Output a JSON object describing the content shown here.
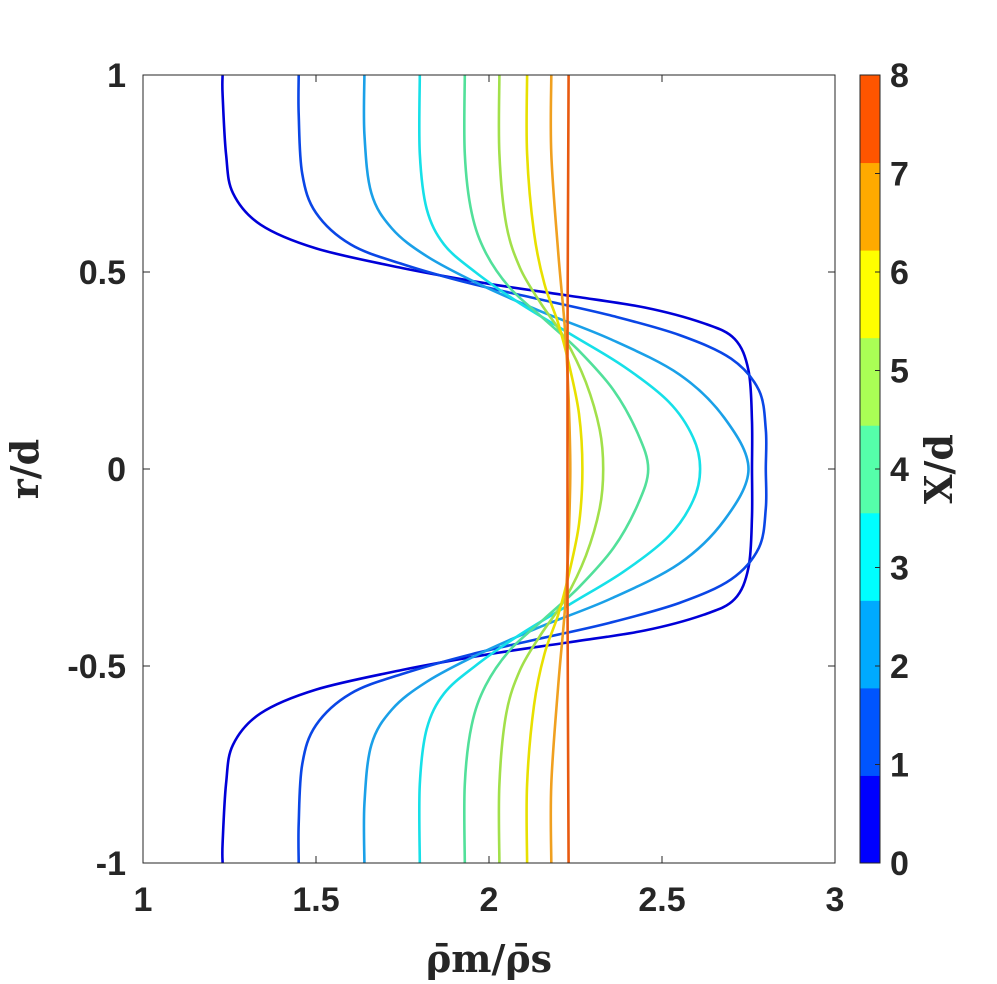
{
  "chart_data": {
    "type": "line",
    "title": "",
    "xlabel": "ρ̄m/ρ̄s",
    "ylabel": "r/d",
    "xlim": [
      1,
      3
    ],
    "ylim": [
      -1,
      1
    ],
    "grid": false,
    "x_ticks": [
      "1",
      "1.5",
      "2",
      "2.5",
      "3"
    ],
    "y_ticks": [
      "-1",
      "-0.5",
      "0",
      "0.5",
      "1"
    ],
    "colorbar": {
      "label": "X/d",
      "range": [
        0,
        8
      ],
      "ticks": [
        "0",
        "1",
        "2",
        "3",
        "4",
        "5",
        "6",
        "7",
        "8"
      ],
      "colors": [
        "#0000ff",
        "#0055ff",
        "#00aaff",
        "#00ffff",
        "#55ffaa",
        "#aaff55",
        "#ffff00",
        "#ffaa00",
        "#ff5500"
      ]
    },
    "series": [
      {
        "color": "#0000d8",
        "x": [
          1.23,
          1.23,
          1.24,
          1.26,
          1.34,
          1.5,
          1.75,
          2.0,
          2.23,
          2.45,
          2.62,
          2.71,
          2.75,
          2.76,
          2.76
        ],
        "y": [
          1.0,
          0.95,
          0.8,
          0.7,
          0.62,
          0.56,
          0.51,
          0.47,
          0.44,
          0.41,
          0.37,
          0.33,
          0.25,
          0.12,
          0.0
        ]
      },
      {
        "color": "#0a46e6",
        "x": [
          1.45,
          1.45,
          1.46,
          1.5,
          1.6,
          1.75,
          1.95,
          2.15,
          2.35,
          2.55,
          2.7,
          2.78,
          2.8,
          2.8
        ],
        "y": [
          1.0,
          0.9,
          0.75,
          0.65,
          0.57,
          0.52,
          0.47,
          0.43,
          0.39,
          0.34,
          0.28,
          0.2,
          0.1,
          0.0
        ]
      },
      {
        "color": "#1aa0e8",
        "x": [
          1.64,
          1.64,
          1.66,
          1.72,
          1.82,
          1.97,
          2.15,
          2.35,
          2.55,
          2.68,
          2.75
        ],
        "y": [
          1.0,
          0.85,
          0.7,
          0.61,
          0.54,
          0.47,
          0.4,
          0.33,
          0.24,
          0.13,
          0.0
        ]
      },
      {
        "color": "#16e0e8",
        "x": [
          1.8,
          1.8,
          1.82,
          1.87,
          1.96,
          2.09,
          2.24,
          2.39,
          2.52,
          2.59,
          2.61
        ],
        "y": [
          1.0,
          0.8,
          0.66,
          0.57,
          0.5,
          0.42,
          0.34,
          0.26,
          0.17,
          0.08,
          0.0
        ]
      },
      {
        "color": "#52e09a",
        "x": [
          1.93,
          1.93,
          1.95,
          1.99,
          2.06,
          2.16,
          2.26,
          2.36,
          2.43,
          2.46
        ],
        "y": [
          1.0,
          0.8,
          0.65,
          0.55,
          0.46,
          0.38,
          0.3,
          0.2,
          0.09,
          0.0
        ]
      },
      {
        "color": "#a2e04a",
        "x": [
          2.03,
          2.03,
          2.05,
          2.09,
          2.15,
          2.22,
          2.28,
          2.32,
          2.33
        ],
        "y": [
          1.0,
          0.8,
          0.62,
          0.51,
          0.42,
          0.33,
          0.22,
          0.1,
          0.0
        ]
      },
      {
        "color": "#e8e000",
        "x": [
          2.11,
          2.11,
          2.13,
          2.16,
          2.2,
          2.23,
          2.26,
          2.27
        ],
        "y": [
          1.0,
          0.8,
          0.6,
          0.47,
          0.37,
          0.27,
          0.14,
          0.0
        ]
      },
      {
        "color": "#f0a020",
        "x": [
          2.18,
          2.18,
          2.2,
          2.22,
          2.23,
          2.235
        ],
        "y": [
          1.0,
          0.8,
          0.55,
          0.35,
          0.18,
          0.0
        ]
      },
      {
        "color": "#e85a10",
        "x": [
          2.23,
          2.228,
          2.227,
          2.227
        ],
        "y": [
          1.0,
          0.6,
          0.3,
          0.0
        ]
      }
    ]
  }
}
